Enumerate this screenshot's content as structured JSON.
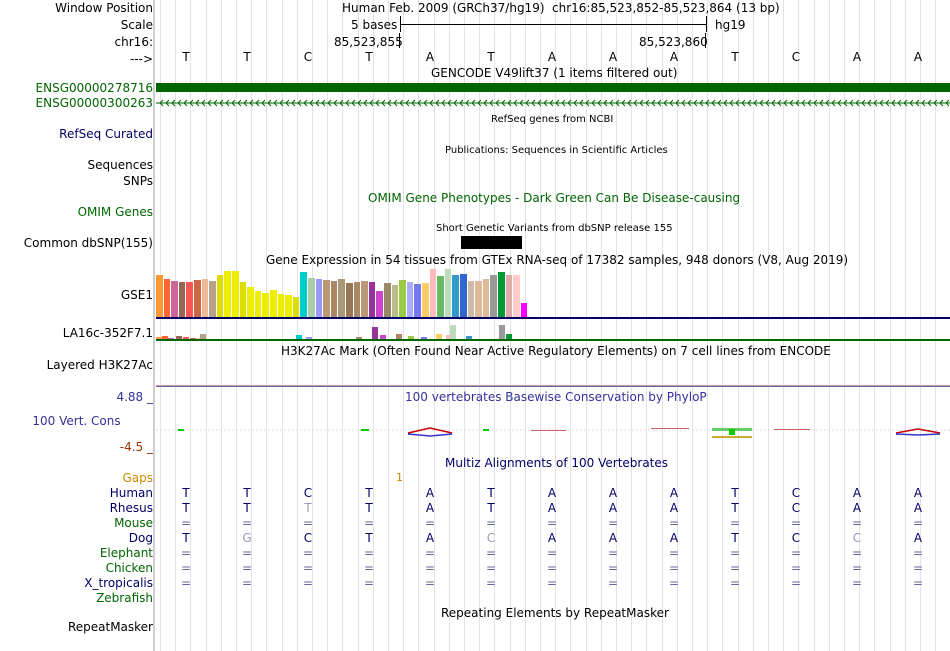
{
  "header": {
    "window_position_label": "Window Position",
    "scale_label": "Scale",
    "chrom_label": "chr16:",
    "strand_label": "--->",
    "assembly_text": "Human Feb. 2009 (GRCh37/hg19)",
    "position_text": "chr16:85,523,852-85,523,864 (13 bp)",
    "scale_text": "5 bases",
    "assembly_short": "hg19",
    "coord_left": "85,523,855",
    "coord_right": "85,523,860"
  },
  "sequence": [
    "T",
    "T",
    "C",
    "T",
    "A",
    "T",
    "A",
    "A",
    "A",
    "T",
    "C",
    "A",
    "A"
  ],
  "tracks": {
    "gencode_title": "GENCODE V49lift37 (1 items filtered out)",
    "gene1_label": "ENSG00000278716",
    "gene2_label": "ENSG00000300263",
    "refseq_label": "RefSeq Curated",
    "refseq_title": "RefSeq genes from NCBI",
    "sequences_label": "Sequences",
    "sequences_title": "Publications: Sequences in Scientific Articles",
    "snps_label": "SNPs",
    "omim_title": "OMIM Gene Phenotypes - Dark Green Can Be Disease-causing",
    "omim_label": "OMIM Genes",
    "dbsnp_title": "Short Genetic Variants from dbSNP release 155",
    "dbsnp_label": "Common dbSNP(155)",
    "gtex_title": "Gene Expression in 54 tissues from GTEx RNA-seq of 17382 samples, 948 donors (V8, Aug 2019)",
    "gtex_gene1": "GSE1",
    "gtex_gene2": "LA16c-352F7.1",
    "h3k27ac_title": "H3K27Ac Mark (Often Found Near Active Regulatory Elements) on 7 cell lines from ENCODE",
    "h3k27ac_label": "Layered H3K27Ac",
    "phylop_max": "4.88 _",
    "phylop_title": "100 vertebrates Basewise Conservation by PhyloP",
    "phylop_label": "100 Vert. Cons",
    "phylop_min": "-4.5 _",
    "multiz_title": "Multiz Alignments of 100 Vertebrates",
    "gaps_label": "Gaps",
    "gaps_value": "1",
    "repeat_title": "Repeating Elements by RepeatMasker",
    "repeat_label": "RepeatMasker"
  },
  "gtex_bars": {
    "gse1": [
      {
        "color": "#ff9933",
        "value": 44
      },
      {
        "color": "#ff6633",
        "value": 40
      },
      {
        "color": "#cc6699",
        "value": 37
      },
      {
        "color": "#996655",
        "value": 36
      },
      {
        "color": "#ff5555",
        "value": 36
      },
      {
        "color": "#cc6644",
        "value": 39
      },
      {
        "color": "#eebb99",
        "value": 40
      },
      {
        "color": "#b9a08a",
        "value": 38
      },
      {
        "color": "#dddd00",
        "value": 44
      },
      {
        "color": "#eeee00",
        "value": 48
      },
      {
        "color": "#eeee00",
        "value": 48
      },
      {
        "color": "#dddd00",
        "value": 36
      },
      {
        "color": "#eeee00",
        "value": 31
      },
      {
        "color": "#eeee00",
        "value": 27
      },
      {
        "color": "#eeee00",
        "value": 25
      },
      {
        "color": "#eeee00",
        "value": 28
      },
      {
        "color": "#eeee00",
        "value": 24
      },
      {
        "color": "#eeee00",
        "value": 23
      },
      {
        "color": "#dddd00",
        "value": 21
      },
      {
        "color": "#00cccc",
        "value": 47
      },
      {
        "color": "#aaccaa",
        "value": 41
      },
      {
        "color": "#9999ff",
        "value": 40
      },
      {
        "color": "#bb9977",
        "value": 39
      },
      {
        "color": "#aa8866",
        "value": 38
      },
      {
        "color": "#aa9977",
        "value": 40
      },
      {
        "color": "#997755",
        "value": 35
      },
      {
        "color": "#aa8866",
        "value": 36
      },
      {
        "color": "#bb9977",
        "value": 37
      },
      {
        "color": "#993399",
        "value": 36
      },
      {
        "color": "#cc44cc",
        "value": 27
      },
      {
        "color": "#998866",
        "value": 35
      },
      {
        "color": "#bbbb88",
        "value": 33
      },
      {
        "color": "#99cc44",
        "value": 39
      },
      {
        "color": "#aaaaff",
        "value": 36
      },
      {
        "color": "#7777ee",
        "value": 34
      },
      {
        "color": "#ffcc66",
        "value": 35
      },
      {
        "color": "#ffbbbb",
        "value": 50
      },
      {
        "color": "#66bb66",
        "value": 43
      },
      {
        "color": "#bbddbb",
        "value": 50
      },
      {
        "color": "#3399cc",
        "value": 44
      },
      {
        "color": "#3366cc",
        "value": 45
      },
      {
        "color": "#ccbbaa",
        "value": 38
      },
      {
        "color": "#ddbb99",
        "value": 38
      },
      {
        "color": "#ddbb99",
        "value": 40
      },
      {
        "color": "#999999",
        "value": 44
      },
      {
        "color": "#009933",
        "value": 47
      },
      {
        "color": "#ddaaaa",
        "value": 44
      },
      {
        "color": "#ffcccc",
        "value": 44
      },
      {
        "color": "#ff00ff",
        "value": 15
      }
    ],
    "la16c": [
      {
        "color": "#ff9933",
        "value": 2
      },
      {
        "color": "#ff6633",
        "value": 3
      },
      {
        "color": "#cc6699",
        "value": 1
      },
      {
        "color": "#996655",
        "value": 3
      },
      {
        "color": "#ff5555",
        "value": 2
      },
      {
        "color": "#cc6644",
        "value": 1
      },
      {
        "color": "#eebb99",
        "value": 1
      },
      {
        "color": "#b9a08a",
        "value": 5
      },
      {
        "color": "#00cccc",
        "value": 4
      },
      {
        "color": "#9999ff",
        "value": 2
      },
      {
        "color": "#aa8866",
        "value": 2
      },
      {
        "color": "#993399",
        "value": 12
      },
      {
        "color": "#cc44cc",
        "value": 4
      },
      {
        "color": "#aa8866",
        "value": 5
      },
      {
        "color": "#99cc44",
        "value": 3
      },
      {
        "color": "#7777ee",
        "value": 2
      },
      {
        "color": "#ffcc66",
        "value": 5
      },
      {
        "color": "#ffbbbb",
        "value": 4
      },
      {
        "color": "#bbddbb",
        "value": 14
      },
      {
        "color": "#3399cc",
        "value": 3
      },
      {
        "color": "#999999",
        "value": 14
      },
      {
        "color": "#009933",
        "value": 5
      }
    ]
  },
  "multiz": {
    "rows": [
      {
        "species": "Human",
        "color": "#000066",
        "bases": [
          "T",
          "T",
          "C",
          "T",
          "A",
          "T",
          "A",
          "A",
          "A",
          "T",
          "C",
          "A",
          "A"
        ]
      },
      {
        "species": "Rhesus",
        "color": "#000066",
        "bases": [
          "T",
          "T",
          "T",
          "T",
          "A",
          "T",
          "A",
          "A",
          "A",
          "T",
          "C",
          "A",
          "A"
        ]
      },
      {
        "species": "Mouse",
        "color": "#006600",
        "bases": [
          "=",
          "=",
          "=",
          "=",
          "=",
          "=",
          "=",
          "=",
          "=",
          "=",
          "=",
          "=",
          "="
        ]
      },
      {
        "species": "Dog",
        "color": "#000066",
        "bases": [
          "T",
          "G",
          "C",
          "T",
          "A",
          "C",
          "A",
          "A",
          "A",
          "T",
          "C",
          "C",
          "A"
        ]
      },
      {
        "species": "Elephant",
        "color": "#006600",
        "bases": [
          "=",
          "=",
          "=",
          "=",
          "=",
          "=",
          "=",
          "=",
          "=",
          "=",
          "=",
          "=",
          "="
        ]
      },
      {
        "species": "Chicken",
        "color": "#006600",
        "bases": [
          "=",
          "=",
          "=",
          "=",
          "=",
          "=",
          "=",
          "=",
          "=",
          "=",
          "=",
          "=",
          "="
        ]
      },
      {
        "species": "X_tropicalis",
        "color": "#000066",
        "bases": [
          "=",
          "=",
          "=",
          "=",
          "=",
          "=",
          "=",
          "=",
          "=",
          "=",
          "=",
          "=",
          "="
        ]
      },
      {
        "species": "Zebrafish",
        "color": "#006600",
        "bases": []
      }
    ]
  },
  "colors": {
    "gene_green": "#006600",
    "navy": "#000066",
    "phylop_title": "#333399",
    "gaps_orange": "#cc8800",
    "low_value": "#993300",
    "grid": "#e2e2ec"
  }
}
